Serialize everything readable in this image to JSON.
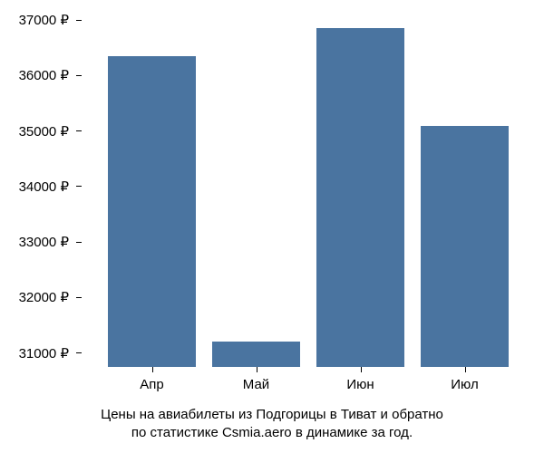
{
  "chart": {
    "type": "bar",
    "categories": [
      "Апр",
      "Май",
      "Июн",
      "Июл"
    ],
    "values": [
      36350,
      31200,
      36850,
      35100
    ],
    "bar_color": "#4a74a0",
    "background_color": "#ffffff",
    "y_min": 30750,
    "y_max": 37200,
    "y_ticks": [
      31000,
      32000,
      33000,
      34000,
      35000,
      36000,
      37000
    ],
    "y_tick_labels": [
      "31000 ₽",
      "32000 ₽",
      "33000 ₽",
      "34000 ₽",
      "35000 ₽",
      "36000 ₽",
      "37000 ₽"
    ],
    "tick_label_fontsize": 15,
    "tick_label_color": "#000000",
    "bar_width_ratio": 0.85,
    "caption_line1": "Цены на авиабилеты из Подгорицы в Тиват и обратно",
    "caption_line2": "по статистике Csmia.aero в динамике за год.",
    "caption_fontsize": 15,
    "caption_color": "#000000"
  }
}
